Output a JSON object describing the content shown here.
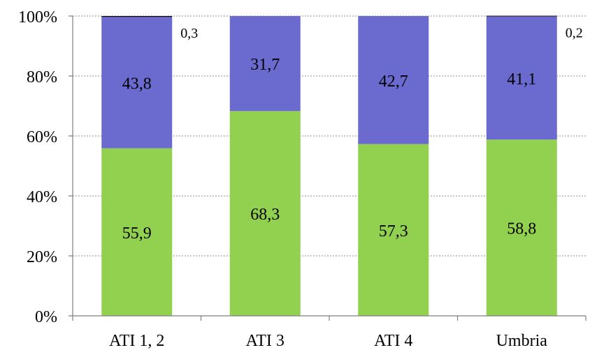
{
  "chart_data": {
    "type": "bar",
    "stacked": true,
    "percent_scale": true,
    "categories": [
      "ATI 1, 2",
      "ATI 3",
      "ATI 4",
      "Umbria"
    ],
    "series": [
      {
        "values": [
          55.9,
          68.3,
          57.3,
          58.8
        ],
        "labels": [
          "55,9",
          "68,3",
          "57,3",
          "58,8"
        ],
        "color": "#92d050"
      },
      {
        "values": [
          43.8,
          31.7,
          42.7,
          41.1
        ],
        "labels": [
          "43,8",
          "31,7",
          "42,7",
          "41,1"
        ],
        "color": "#6a6acf"
      },
      {
        "values": [
          0.3,
          0.0,
          0.0,
          0.2
        ],
        "labels": [
          "0,3",
          "",
          "",
          "0,2"
        ],
        "color": "#000000"
      }
    ],
    "yticks": [
      "0%",
      "20%",
      "40%",
      "60%",
      "80%",
      "100%"
    ],
    "ylim": [
      0,
      100
    ],
    "grid": true,
    "legend": "none"
  }
}
